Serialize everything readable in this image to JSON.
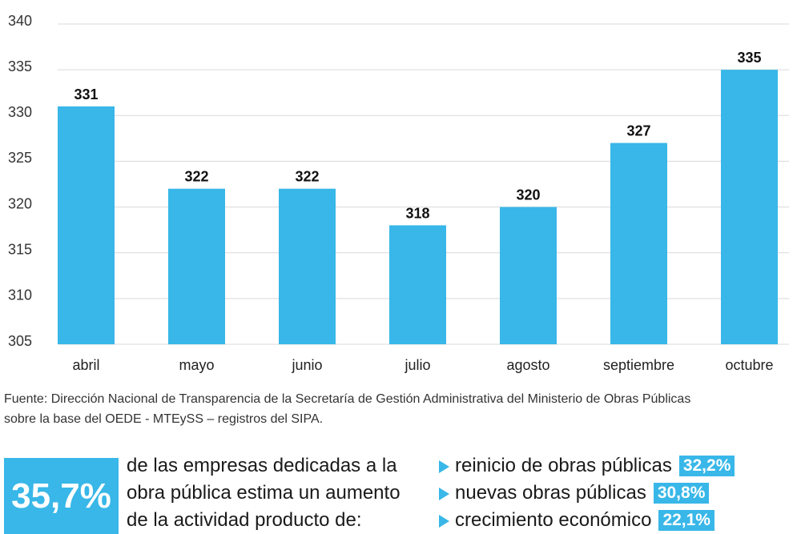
{
  "colors": {
    "accent": "#38b7e8",
    "text": "#1a1a1a",
    "gridline": "#d9d9d9",
    "badge_text": "#ffffff"
  },
  "chart_data": {
    "type": "bar",
    "categories": [
      "abril",
      "mayo",
      "junio",
      "julio",
      "agosto",
      "septiembre",
      "octubre"
    ],
    "values": [
      331,
      322,
      322,
      318,
      320,
      327,
      335
    ],
    "data_labels": true,
    "ylim": [
      305,
      340
    ],
    "yticks": [
      305,
      310,
      315,
      320,
      325,
      330,
      335,
      340
    ],
    "grid": true,
    "bar_color": "#38b7e8"
  },
  "source_note": {
    "lines": [
      "Fuente: Dirección Nacional de Transparencia de la Secretaría de Gestión Administrativa del Ministerio de Obras Públicas",
      "sobre la base del OEDE - MTEySS – registros del SIPA."
    ]
  },
  "highlight": {
    "value": "35,7%",
    "text_lines": [
      "de las empresas dedicadas a la",
      "obra pública estima un aumento",
      "de la actividad producto de:"
    ]
  },
  "reasons": [
    {
      "label": "reinicio de obras públicas",
      "value": "32,2%"
    },
    {
      "label": "nuevas obras públicas",
      "value": "30,8%"
    },
    {
      "label": "crecimiento económico",
      "value": "22,1%"
    }
  ],
  "icons": {
    "bullet": "triangle-right-icon"
  }
}
